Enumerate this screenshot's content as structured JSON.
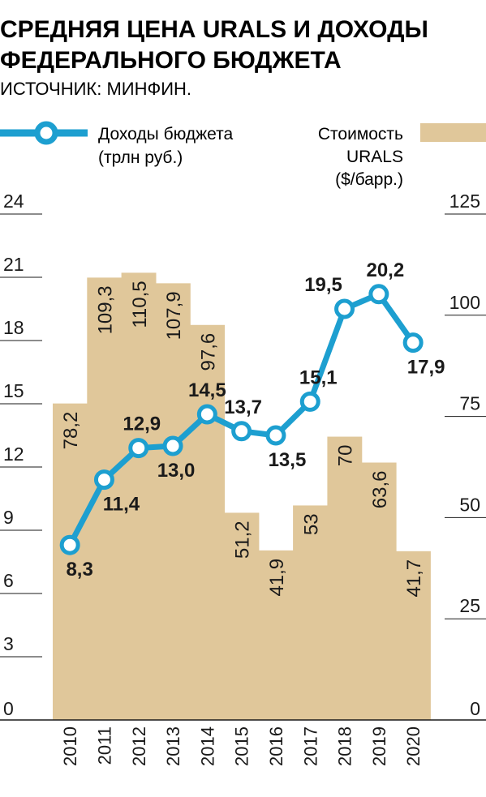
{
  "header": {
    "title_line1": "СРЕДНЯЯ ЦЕНА URALS И ДОХОДЫ",
    "title_line2": "ФЕДЕРАЛЬНОГО БЮДЖЕТА",
    "source": "ИСТОЧНИК: МИНФИН."
  },
  "colors": {
    "bar": "#e0c79a",
    "line": "#1d9fd0",
    "grid": "#1a1a1a",
    "text": "#1a1a1a"
  },
  "chart_data": {
    "type": "bar+line",
    "categories": [
      "2010",
      "2011",
      "2012",
      "2013",
      "2014",
      "2015",
      "2016",
      "2017",
      "2018",
      "2019",
      "2020"
    ],
    "series": [
      {
        "name": "Доходы бюджета (трлн руб.)",
        "legend_line1": "Доходы бюджета",
        "legend_line2": "(трлн руб.)",
        "type": "line",
        "axis": "left",
        "values": [
          8.3,
          11.4,
          12.9,
          13.0,
          14.5,
          13.7,
          13.5,
          15.1,
          19.5,
          20.2,
          17.9
        ],
        "labels": [
          "8,3",
          "11,4",
          "12,9",
          "13,0",
          "14,5",
          "13,7",
          "13,5",
          "15,1",
          "19,5",
          "20,2",
          "17,9"
        ]
      },
      {
        "name": "Стоимость URALS ($/барр.)",
        "legend_line1": "Стоимость",
        "legend_line2": "URALS",
        "legend_line3": "($/барр.)",
        "type": "bar",
        "axis": "right",
        "values": [
          78.2,
          109.3,
          110.5,
          107.9,
          97.6,
          51.2,
          41.9,
          53,
          70,
          63.6,
          41.7
        ],
        "labels": [
          "78,2",
          "109,3",
          "110,5",
          "107,9",
          "97,6",
          "51,2",
          "41,9",
          "53",
          "70",
          "63,6",
          "41,7"
        ]
      }
    ],
    "left_axis": {
      "ticks": [
        "0",
        "3",
        "6",
        "9",
        "12",
        "15",
        "18",
        "21",
        "24"
      ],
      "range": [
        0,
        24
      ]
    },
    "right_axis": {
      "ticks": [
        "0",
        "25",
        "50",
        "75",
        "100",
        "125"
      ],
      "range": [
        0,
        125
      ]
    }
  }
}
